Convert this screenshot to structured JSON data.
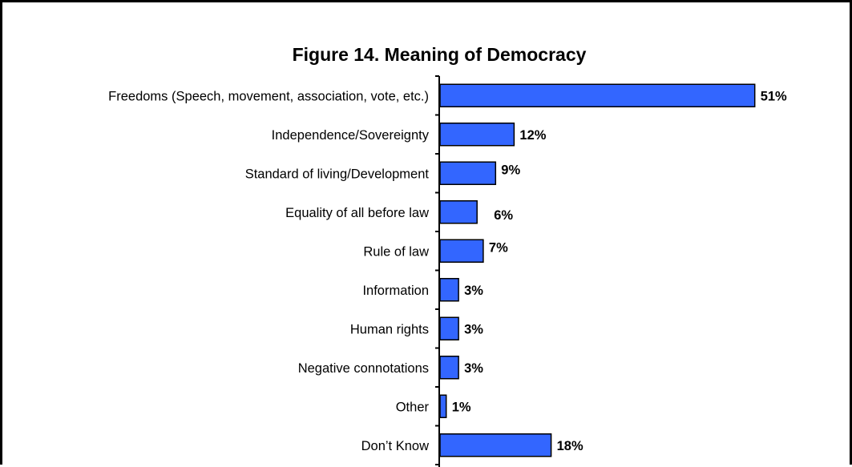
{
  "chart_data": {
    "type": "bar",
    "orientation": "horizontal",
    "title": "Figure 14. Meaning of Democracy",
    "categories": [
      "Freedoms (Speech, movement, association, vote, etc.)",
      "Independence/Sovereignty",
      "Standard of living/Development",
      "Equality of all before law",
      "Rule of law",
      "Information",
      "Human rights",
      "Negative connotations",
      "Other",
      "Don’t Know"
    ],
    "values": [
      51,
      12,
      9,
      6,
      7,
      3,
      3,
      3,
      1,
      18
    ],
    "value_labels": [
      "51%",
      "12%",
      "9%",
      "6%",
      "7%",
      "3%",
      "3%",
      "3%",
      "1%",
      "18%"
    ],
    "unit": "%",
    "xlabel": "",
    "ylabel": "",
    "grid": false,
    "legend": "none",
    "bar_color": "#3366FF",
    "bar_edge_color": "#000000"
  }
}
